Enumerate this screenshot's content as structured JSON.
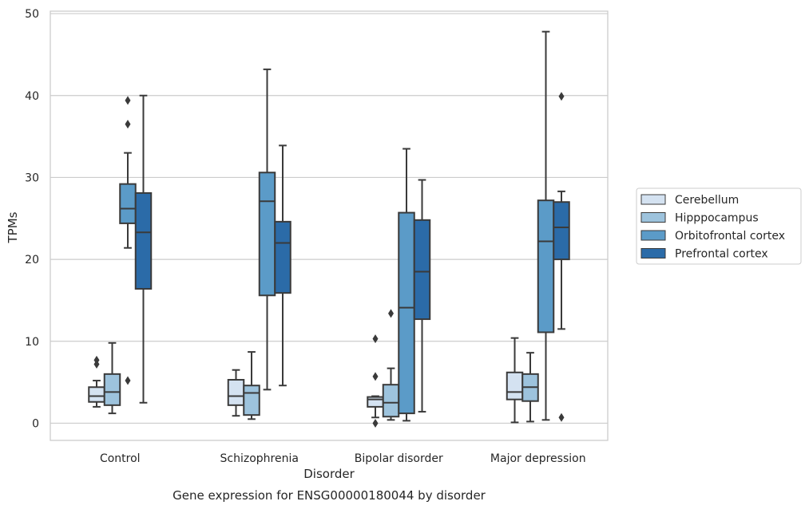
{
  "chart_data": {
    "type": "box",
    "title": "Gene expression for ENSG00000180044 by disorder",
    "xlabel": "Disorder",
    "ylabel": "TPMs",
    "ylim": [
      -2.1,
      50.3
    ],
    "yticks": [
      0,
      10,
      20,
      30,
      40,
      50
    ],
    "grid": "horizontal",
    "legend_position": "right",
    "categories": [
      "Control",
      "Schizophrenia",
      "Bipolar disorder",
      "Major depression"
    ],
    "series": [
      {
        "name": "Cerebellum",
        "color": "#d4e2f1",
        "boxes": [
          {
            "whislo": 2.0,
            "q1": 2.6,
            "med": 3.3,
            "q3": 4.4,
            "whishi": 5.2,
            "fliers": [
              7.2,
              7.7
            ]
          },
          {
            "whislo": 0.9,
            "q1": 2.2,
            "med": 3.3,
            "q3": 5.3,
            "whishi": 6.5,
            "fliers": []
          },
          {
            "whislo": 0.7,
            "q1": 2.0,
            "med": 2.9,
            "q3": 3.2,
            "whishi": 3.3,
            "fliers": [
              10.3,
              5.7,
              0.0
            ]
          },
          {
            "whislo": 0.1,
            "q1": 2.9,
            "med": 3.8,
            "q3": 6.2,
            "whishi": 10.4,
            "fliers": []
          }
        ]
      },
      {
        "name": "Hipppocampus",
        "color": "#9dc3dd",
        "boxes": [
          {
            "whislo": 1.2,
            "q1": 2.2,
            "med": 3.8,
            "q3": 6.0,
            "whishi": 9.8,
            "fliers": []
          },
          {
            "whislo": 0.5,
            "q1": 1.0,
            "med": 3.7,
            "q3": 4.6,
            "whishi": 8.7,
            "fliers": []
          },
          {
            "whislo": 0.4,
            "q1": 0.8,
            "med": 2.5,
            "q3": 4.7,
            "whishi": 6.7,
            "fliers": [
              13.4
            ]
          },
          {
            "whislo": 0.2,
            "q1": 2.7,
            "med": 4.4,
            "q3": 6.0,
            "whishi": 8.6,
            "fliers": []
          }
        ]
      },
      {
        "name": "Orbitofrontal cortex",
        "color": "#5b9bc8",
        "boxes": [
          {
            "whislo": 21.4,
            "q1": 24.4,
            "med": 26.2,
            "q3": 29.2,
            "whishi": 33.0,
            "fliers": [
              39.4,
              36.5,
              5.2
            ]
          },
          {
            "whislo": 4.1,
            "q1": 15.6,
            "med": 27.1,
            "q3": 30.6,
            "whishi": 43.2,
            "fliers": []
          },
          {
            "whislo": 0.3,
            "q1": 1.2,
            "med": 14.1,
            "q3": 25.7,
            "whishi": 33.5,
            "fliers": []
          },
          {
            "whislo": 0.4,
            "q1": 11.1,
            "med": 22.2,
            "q3": 27.2,
            "whishi": 47.8,
            "fliers": []
          }
        ]
      },
      {
        "name": "Prefrontal cortex",
        "color": "#2b6ba8",
        "boxes": [
          {
            "whislo": 2.5,
            "q1": 16.4,
            "med": 23.3,
            "q3": 28.1,
            "whishi": 40.0,
            "fliers": []
          },
          {
            "whislo": 4.6,
            "q1": 15.9,
            "med": 22.0,
            "q3": 24.6,
            "whishi": 33.9,
            "fliers": []
          },
          {
            "whislo": 1.4,
            "q1": 12.7,
            "med": 18.5,
            "q3": 24.8,
            "whishi": 29.7,
            "fliers": []
          },
          {
            "whislo": 11.5,
            "q1": 20.0,
            "med": 23.9,
            "q3": 27.0,
            "whishi": 28.3,
            "fliers": [
              0.7,
              39.9
            ]
          }
        ]
      }
    ]
  }
}
